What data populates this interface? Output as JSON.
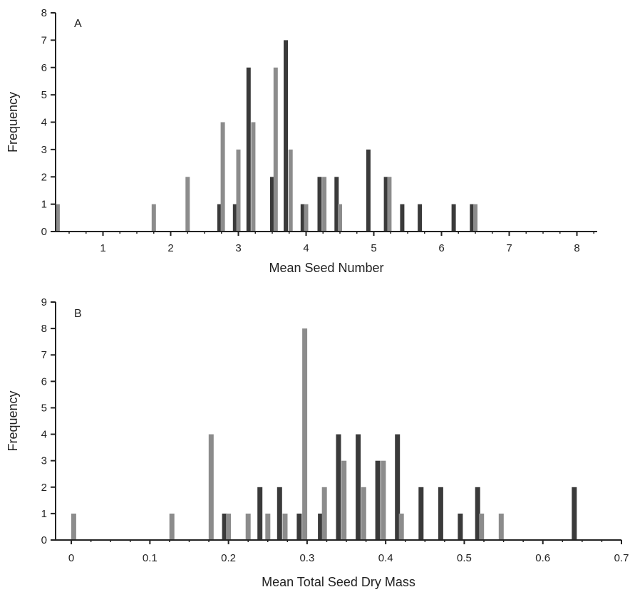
{
  "chart_data": [
    {
      "type": "bar",
      "panel_label": "A",
      "xlabel": "Mean Seed Number",
      "ylabel": "Frequency",
      "xlim": [
        0.3,
        8.3
      ],
      "ylim": [
        0,
        8
      ],
      "xticks": [
        1,
        2,
        3,
        4,
        5,
        6,
        7,
        8
      ],
      "yticks": [
        0,
        1,
        2,
        3,
        4,
        5,
        6,
        7,
        8
      ],
      "grid": false,
      "series": [
        {
          "color": "#3a3a3a",
          "points": [
            {
              "x": 2.72,
              "y": 1
            },
            {
              "x": 2.95,
              "y": 1
            },
            {
              "x": 3.15,
              "y": 6
            },
            {
              "x": 3.5,
              "y": 2
            },
            {
              "x": 3.7,
              "y": 7
            },
            {
              "x": 3.95,
              "y": 1
            },
            {
              "x": 4.2,
              "y": 2
            },
            {
              "x": 4.45,
              "y": 2
            },
            {
              "x": 4.92,
              "y": 3
            },
            {
              "x": 5.18,
              "y": 2
            },
            {
              "x": 5.42,
              "y": 1
            },
            {
              "x": 5.68,
              "y": 1
            },
            {
              "x": 6.18,
              "y": 1
            },
            {
              "x": 6.45,
              "y": 1
            }
          ]
        },
        {
          "color": "#8c8c8c",
          "points": [
            {
              "x": 0.33,
              "y": 1
            },
            {
              "x": 1.75,
              "y": 1
            },
            {
              "x": 2.25,
              "y": 2
            },
            {
              "x": 2.77,
              "y": 4
            },
            {
              "x": 3.0,
              "y": 3
            },
            {
              "x": 3.22,
              "y": 4
            },
            {
              "x": 3.55,
              "y": 6
            },
            {
              "x": 3.77,
              "y": 3
            },
            {
              "x": 4.0,
              "y": 1
            },
            {
              "x": 4.27,
              "y": 2
            },
            {
              "x": 4.5,
              "y": 1
            },
            {
              "x": 5.23,
              "y": 2
            },
            {
              "x": 6.5,
              "y": 1
            }
          ]
        }
      ]
    },
    {
      "type": "bar",
      "panel_label": "B",
      "xlabel": "Mean Total Seed Dry Mass",
      "ylabel": "Frequency",
      "xlim": [
        -0.02,
        0.7
      ],
      "ylim": [
        0,
        9
      ],
      "xticks": [
        0,
        0.1,
        0.2,
        0.3,
        0.4,
        0.5,
        0.6,
        0.7
      ],
      "yticks": [
        0,
        1,
        2,
        3,
        4,
        5,
        6,
        7,
        8,
        9
      ],
      "grid": false,
      "series": [
        {
          "color": "#3a3a3a",
          "points": [
            {
              "x": 0.195,
              "y": 1
            },
            {
              "x": 0.24,
              "y": 2
            },
            {
              "x": 0.265,
              "y": 2
            },
            {
              "x": 0.29,
              "y": 1
            },
            {
              "x": 0.317,
              "y": 1
            },
            {
              "x": 0.34,
              "y": 4
            },
            {
              "x": 0.365,
              "y": 4
            },
            {
              "x": 0.39,
              "y": 3
            },
            {
              "x": 0.415,
              "y": 4
            },
            {
              "x": 0.445,
              "y": 2
            },
            {
              "x": 0.47,
              "y": 2
            },
            {
              "x": 0.495,
              "y": 1
            },
            {
              "x": 0.517,
              "y": 2
            },
            {
              "x": 0.64,
              "y": 2
            }
          ]
        },
        {
          "color": "#8c8c8c",
          "points": [
            {
              "x": 0.003,
              "y": 1
            },
            {
              "x": 0.128,
              "y": 1
            },
            {
              "x": 0.178,
              "y": 4
            },
            {
              "x": 0.2,
              "y": 1
            },
            {
              "x": 0.225,
              "y": 1
            },
            {
              "x": 0.25,
              "y": 1
            },
            {
              "x": 0.272,
              "y": 1
            },
            {
              "x": 0.297,
              "y": 8
            },
            {
              "x": 0.322,
              "y": 2
            },
            {
              "x": 0.347,
              "y": 3
            },
            {
              "x": 0.372,
              "y": 2
            },
            {
              "x": 0.397,
              "y": 3
            },
            {
              "x": 0.42,
              "y": 1
            },
            {
              "x": 0.522,
              "y": 1
            },
            {
              "x": 0.547,
              "y": 1
            }
          ]
        }
      ]
    }
  ]
}
